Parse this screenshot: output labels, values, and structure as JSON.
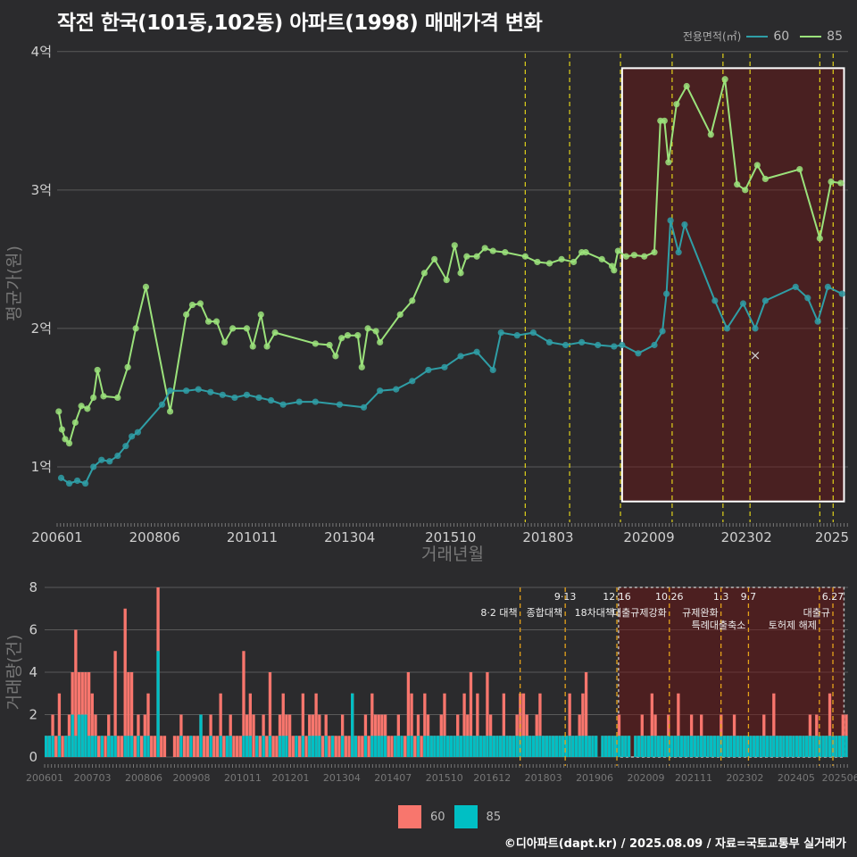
{
  "title": "작전 한국(101동,102동) 아파트(1998) 매매가격 변화",
  "footer": "©디아파트(dapt.kr) / 2025.08.09 / 자료=국토교통부 실거래가",
  "legend": {
    "title": "전용면적(㎡)",
    "items": [
      {
        "name": "60",
        "color": "#2f9ea6"
      },
      {
        "name": "85",
        "color": "#9be27b"
      }
    ]
  },
  "bar_legend": [
    {
      "name": "60",
      "color": "#f8766d"
    },
    {
      "name": "85",
      "color": "#00bfc4"
    }
  ],
  "chart_data": [
    {
      "type": "line",
      "xlabel": "거래년월",
      "ylabel": "평균가(원)",
      "x_ticks": [
        "200601",
        "200806",
        "201011",
        "201304",
        "201510",
        "201803",
        "202009",
        "202302",
        "2025"
      ],
      "y_ticks": [
        {
          "v": 1,
          "label": "1억"
        },
        {
          "v": 2,
          "label": "2억"
        },
        {
          "v": 3,
          "label": "3억"
        },
        {
          "v": 4,
          "label": "4억"
        }
      ],
      "ylim": [
        0.6,
        4.05
      ],
      "xlim": [
        2006.0,
        2025.6
      ],
      "highlight_range": [
        2020.0,
        2025.5
      ],
      "policy_lines": [
        2017.6,
        2018.7,
        2019.96,
        2021.24,
        2022.5,
        2023.17,
        2024.9,
        2025.23
      ],
      "extra_marker": {
        "x": 2023.3,
        "y": 1.8,
        "symbol": "×"
      },
      "series": [
        {
          "name": "85",
          "color": "#9be27b",
          "points": [
            [
              2006.04,
              1.4
            ],
            [
              2006.12,
              1.27
            ],
            [
              2006.2,
              1.2
            ],
            [
              2006.3,
              1.17
            ],
            [
              2006.45,
              1.32
            ],
            [
              2006.6,
              1.44
            ],
            [
              2006.75,
              1.42
            ],
            [
              2006.9,
              1.5
            ],
            [
              2007.0,
              1.7
            ],
            [
              2007.15,
              1.51
            ],
            [
              2007.5,
              1.5
            ],
            [
              2007.75,
              1.72
            ],
            [
              2007.95,
              2.0
            ],
            [
              2008.2,
              2.3
            ],
            [
              2008.8,
              1.4
            ],
            [
              2009.2,
              2.1
            ],
            [
              2009.35,
              2.17
            ],
            [
              2009.55,
              2.18
            ],
            [
              2009.75,
              2.05
            ],
            [
              2009.95,
              2.05
            ],
            [
              2010.15,
              1.9
            ],
            [
              2010.35,
              2.0
            ],
            [
              2010.7,
              2.0
            ],
            [
              2010.85,
              1.87
            ],
            [
              2011.05,
              2.1
            ],
            [
              2011.2,
              1.87
            ],
            [
              2011.4,
              1.97
            ],
            [
              2012.4,
              1.89
            ],
            [
              2012.75,
              1.88
            ],
            [
              2012.9,
              1.8
            ],
            [
              2013.05,
              1.93
            ],
            [
              2013.2,
              1.95
            ],
            [
              2013.45,
              1.95
            ],
            [
              2013.55,
              1.72
            ],
            [
              2013.7,
              2.0
            ],
            [
              2013.9,
              1.98
            ],
            [
              2014.0,
              1.9
            ],
            [
              2014.5,
              2.1
            ],
            [
              2014.8,
              2.2
            ],
            [
              2015.1,
              2.4
            ],
            [
              2015.35,
              2.5
            ],
            [
              2015.65,
              2.35
            ],
            [
              2015.85,
              2.6
            ],
            [
              2016.0,
              2.4
            ],
            [
              2016.15,
              2.52
            ],
            [
              2016.4,
              2.52
            ],
            [
              2016.6,
              2.58
            ],
            [
              2016.8,
              2.56
            ],
            [
              2017.1,
              2.55
            ],
            [
              2017.6,
              2.52
            ],
            [
              2017.9,
              2.48
            ],
            [
              2018.2,
              2.47
            ],
            [
              2018.5,
              2.5
            ],
            [
              2018.8,
              2.48
            ],
            [
              2019.0,
              2.55
            ],
            [
              2019.1,
              2.55
            ],
            [
              2019.5,
              2.5
            ],
            [
              2019.75,
              2.45
            ],
            [
              2019.8,
              2.42
            ],
            [
              2019.9,
              2.56
            ],
            [
              2020.1,
              2.52
            ],
            [
              2020.3,
              2.53
            ],
            [
              2020.55,
              2.52
            ],
            [
              2020.8,
              2.55
            ],
            [
              2020.95,
              3.5
            ],
            [
              2021.05,
              3.5
            ],
            [
              2021.15,
              3.2
            ],
            [
              2021.35,
              3.62
            ],
            [
              2021.6,
              3.75
            ],
            [
              2022.2,
              3.4
            ],
            [
              2022.55,
              3.8
            ],
            [
              2022.85,
              3.04
            ],
            [
              2023.05,
              3.0
            ],
            [
              2023.35,
              3.18
            ],
            [
              2023.55,
              3.08
            ],
            [
              2024.4,
              3.15
            ],
            [
              2024.9,
              2.65
            ],
            [
              2025.18,
              3.06
            ],
            [
              2025.42,
              3.05
            ]
          ]
        },
        {
          "name": "60",
          "color": "#2f9ea6",
          "points": [
            [
              2006.1,
              0.92
            ],
            [
              2006.3,
              0.88
            ],
            [
              2006.5,
              0.9
            ],
            [
              2006.7,
              0.88
            ],
            [
              2006.9,
              1.0
            ],
            [
              2007.1,
              1.05
            ],
            [
              2007.3,
              1.04
            ],
            [
              2007.5,
              1.08
            ],
            [
              2007.7,
              1.15
            ],
            [
              2007.85,
              1.22
            ],
            [
              2008.0,
              1.25
            ],
            [
              2008.6,
              1.45
            ],
            [
              2008.8,
              1.55
            ],
            [
              2009.2,
              1.55
            ],
            [
              2009.5,
              1.56
            ],
            [
              2009.8,
              1.54
            ],
            [
              2010.1,
              1.52
            ],
            [
              2010.4,
              1.5
            ],
            [
              2010.7,
              1.52
            ],
            [
              2011.0,
              1.5
            ],
            [
              2011.3,
              1.48
            ],
            [
              2011.6,
              1.45
            ],
            [
              2012.0,
              1.47
            ],
            [
              2012.4,
              1.47
            ],
            [
              2013.0,
              1.45
            ],
            [
              2013.6,
              1.43
            ],
            [
              2014.0,
              1.55
            ],
            [
              2014.4,
              1.56
            ],
            [
              2014.8,
              1.62
            ],
            [
              2015.2,
              1.7
            ],
            [
              2015.6,
              1.72
            ],
            [
              2016.0,
              1.8
            ],
            [
              2016.4,
              1.83
            ],
            [
              2016.8,
              1.7
            ],
            [
              2017.0,
              1.97
            ],
            [
              2017.4,
              1.95
            ],
            [
              2017.8,
              1.97
            ],
            [
              2018.2,
              1.9
            ],
            [
              2018.6,
              1.88
            ],
            [
              2019.0,
              1.9
            ],
            [
              2019.4,
              1.88
            ],
            [
              2019.8,
              1.87
            ],
            [
              2020.0,
              1.88
            ],
            [
              2020.4,
              1.82
            ],
            [
              2020.8,
              1.88
            ],
            [
              2021.0,
              1.98
            ],
            [
              2021.1,
              2.25
            ],
            [
              2021.2,
              2.78
            ],
            [
              2021.4,
              2.55
            ],
            [
              2021.55,
              2.75
            ],
            [
              2022.3,
              2.2
            ],
            [
              2022.6,
              2.0
            ],
            [
              2023.0,
              2.18
            ],
            [
              2023.3,
              2.0
            ],
            [
              2023.55,
              2.2
            ],
            [
              2024.3,
              2.3
            ],
            [
              2024.6,
              2.22
            ],
            [
              2024.85,
              2.05
            ],
            [
              2025.1,
              2.3
            ],
            [
              2025.45,
              2.25
            ]
          ]
        }
      ]
    },
    {
      "type": "bar",
      "ylabel": "거래량(건)",
      "x_ticks": [
        "200601",
        "200703",
        "200806",
        "200908",
        "201011",
        "201201",
        "201304",
        "201407",
        "201510",
        "201612",
        "201803",
        "201906",
        "202009",
        "202111",
        "202302",
        "202405",
        "202506"
      ],
      "y_ticks": [
        0,
        2,
        4,
        6,
        8
      ],
      "ylim": [
        0,
        8
      ],
      "highlight_range": [
        2020.0,
        2025.5
      ],
      "annotations": [
        {
          "x": 2017.6,
          "date": "",
          "label": "8·2 대책"
        },
        {
          "x": 2018.7,
          "date": "9·13",
          "label": "종합대책"
        },
        {
          "x": 2019.96,
          "date": "12·16",
          "label": "18차대책"
        },
        {
          "x": 2021.24,
          "date": "10.26",
          "label": "대출규제강화"
        },
        {
          "x": 2022.5,
          "date": "1.3",
          "label": "규제완화"
        },
        {
          "x": 2023.17,
          "date": "9.7",
          "label": "특례대출축소"
        },
        {
          "x": 2024.9,
          "date": "",
          "label": "토허제 해제"
        },
        {
          "x": 2025.23,
          "date": "6.27",
          "label": "대출규"
        }
      ],
      "series_60": [
        1,
        1,
        2,
        1,
        3,
        1,
        1,
        2,
        4,
        6,
        4,
        4,
        4,
        4,
        3,
        2,
        1,
        1,
        1,
        2,
        1,
        5,
        1,
        1,
        7,
        4,
        4,
        1,
        2,
        1,
        2,
        3,
        1,
        1,
        8,
        1,
        1,
        0,
        0,
        1,
        1,
        2,
        1,
        1,
        1,
        1,
        1,
        2,
        1,
        1,
        2,
        1,
        1,
        3,
        1,
        1,
        2,
        1,
        1,
        1,
        5,
        2,
        3,
        2,
        1,
        1,
        2,
        1,
        4,
        1,
        1,
        2,
        3,
        2,
        2,
        1,
        1,
        1,
        3,
        1,
        2,
        2,
        3,
        2,
        1,
        2,
        1,
        1,
        1,
        1,
        2,
        1,
        1,
        3,
        1,
        1,
        1,
        2,
        1,
        3,
        2,
        2,
        2,
        2,
        1,
        1,
        1,
        2,
        1,
        1,
        4,
        3,
        1,
        2,
        1,
        3,
        2,
        1,
        1,
        1,
        2,
        3,
        1,
        1,
        1,
        2,
        1,
        3,
        2,
        4,
        1,
        3,
        1,
        1,
        4,
        2,
        1,
        1,
        1,
        3,
        1,
        1,
        1,
        2,
        3,
        3,
        2,
        1,
        1,
        2,
        3,
        1,
        1,
        1,
        1,
        1,
        1,
        1,
        1,
        3,
        1,
        1,
        2,
        3,
        4,
        1,
        1,
        1,
        0,
        1,
        1,
        1,
        1,
        1,
        2,
        1,
        1,
        1,
        0,
        1,
        1,
        2,
        1,
        1,
        3,
        2,
        1,
        1,
        1,
        2,
        1,
        1,
        3,
        1,
        1,
        1,
        2,
        1,
        1,
        2,
        1,
        1,
        1,
        1,
        1,
        2,
        1,
        1,
        1,
        2,
        1,
        1,
        1,
        1,
        1,
        1,
        1,
        1,
        2,
        1,
        1,
        3,
        1,
        1,
        1,
        1,
        1,
        1,
        1,
        1,
        1,
        1,
        2,
        1,
        2,
        1,
        1,
        1,
        3,
        1,
        1,
        1,
        2,
        2
      ],
      "series_85": [
        1,
        1,
        1,
        0,
        1,
        0,
        1,
        1,
        2,
        1,
        2,
        2,
        2,
        1,
        1,
        1,
        0,
        1,
        0,
        1,
        1,
        1,
        0,
        0,
        1,
        1,
        1,
        0,
        1,
        0,
        1,
        1,
        0,
        0,
        5,
        0,
        0,
        0,
        0,
        0,
        0,
        1,
        0,
        0,
        1,
        0,
        0,
        3,
        0,
        0,
        1,
        0,
        0,
        1,
        0,
        1,
        1,
        0,
        0,
        0,
        1,
        1,
        1,
        0,
        1,
        0,
        1,
        0,
        1,
        0,
        0,
        1,
        1,
        1,
        0,
        0,
        1,
        0,
        1,
        0,
        1,
        1,
        1,
        1,
        0,
        1,
        0,
        1,
        0,
        0,
        1,
        0,
        0,
        3,
        1,
        0,
        0,
        1,
        0,
        1,
        1,
        1,
        1,
        1,
        0,
        0,
        1,
        1,
        1,
        0,
        1,
        1,
        0,
        1,
        0,
        1,
        1,
        1,
        1,
        1,
        1,
        1,
        1,
        1,
        1,
        1,
        1,
        1,
        1,
        1,
        1,
        1,
        1,
        1,
        1,
        1,
        1,
        1,
        1,
        1,
        1,
        1,
        1,
        1,
        1,
        1,
        1,
        1,
        1,
        1,
        1,
        1,
        1,
        1,
        1,
        1,
        1,
        1,
        1,
        1,
        1,
        1,
        1,
        1,
        1,
        1,
        1,
        1,
        0,
        1,
        1,
        1,
        1,
        1,
        1,
        1,
        1,
        1,
        0,
        1,
        1,
        1,
        1,
        1,
        1,
        1,
        1,
        1,
        1,
        1,
        1,
        1,
        1,
        1,
        1,
        1,
        1,
        1,
        1,
        1,
        1,
        1,
        1,
        1,
        1,
        1,
        1,
        1,
        1,
        1,
        1,
        1,
        1,
        1,
        1,
        1,
        1,
        1,
        1,
        1,
        1,
        1,
        1,
        1,
        1,
        1,
        1,
        1,
        1,
        1,
        1,
        1,
        1,
        1,
        1,
        1,
        1,
        1,
        1,
        1,
        1,
        1,
        1,
        1
      ]
    }
  ]
}
